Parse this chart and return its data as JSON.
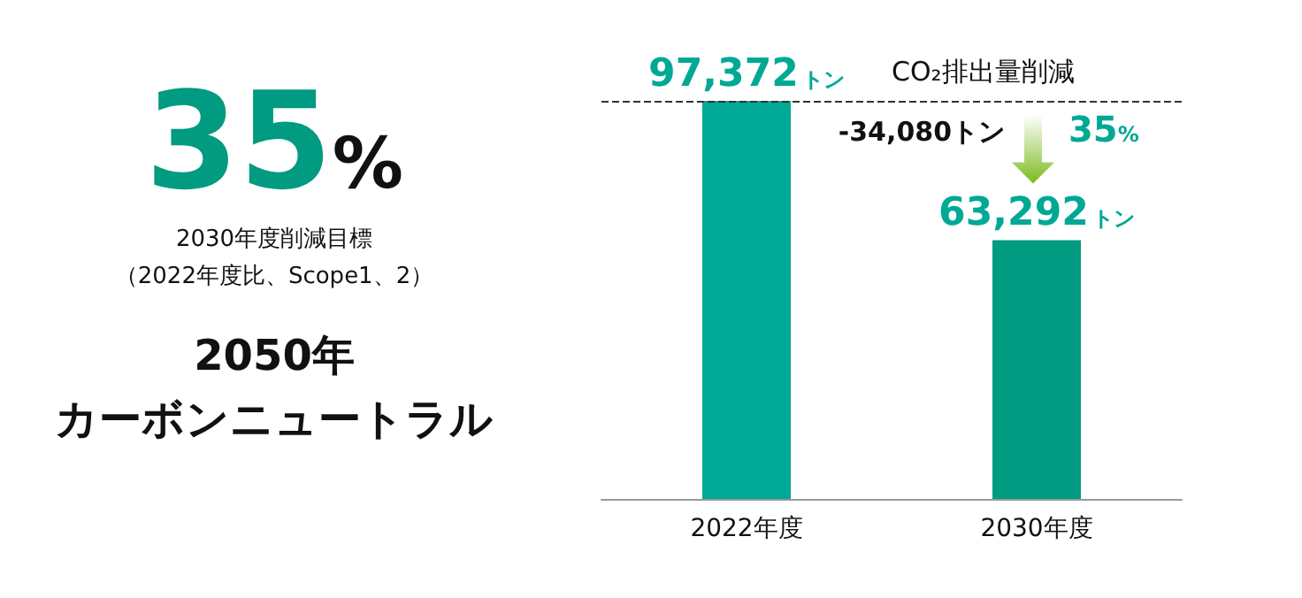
{
  "chart_data": [
    {
      "type": "other",
      "color": "#009b80",
      "annotations": [
        "35%",
        "2030年度削減目標",
        "（2022年度比、Scope1、2）",
        "2050年",
        "カーボンニュートラル"
      ]
    },
    {
      "type": "bar",
      "categories": [
        "2022年度",
        "2030年度"
      ],
      "values": [
        97372,
        63292
      ],
      "colors": [
        "#00a896",
        "#009b80"
      ],
      "value_labels": [
        "97,372トン",
        "63,292トン"
      ],
      "ref_lines": [
        {
          "axis": "y",
          "value": 97372,
          "line_style": "dashed",
          "color": "#333333"
        }
      ],
      "annotations": [
        "CO₂排出量削減",
        "-34,080トン",
        "35%"
      ]
    }
  ]
}
